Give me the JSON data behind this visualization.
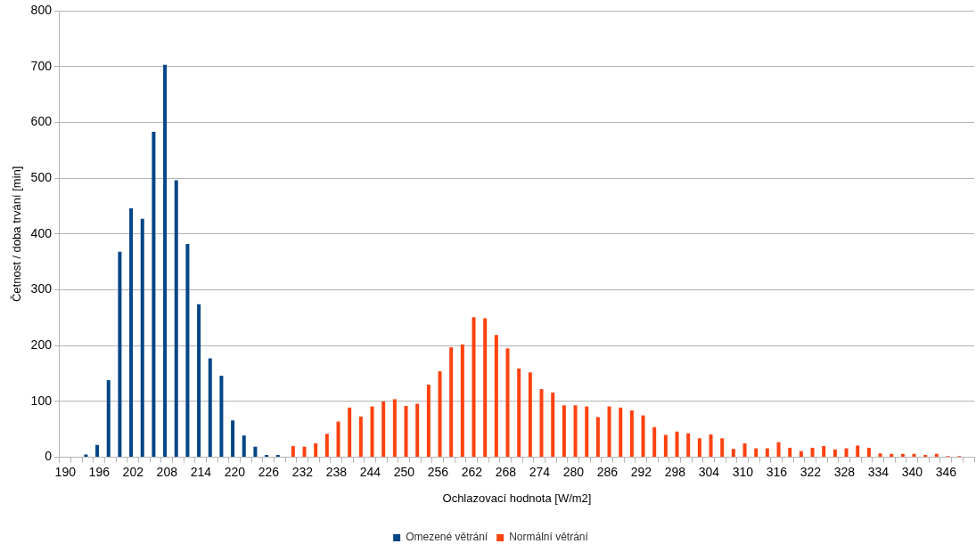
{
  "chart_data": {
    "type": "bar",
    "xlabel": "Ochlazovací hodnota [W/m2]",
    "ylabel": "Četnost / doba trvání [min]",
    "categories": [
      "190",
      null,
      null,
      "196",
      null,
      null,
      "202",
      null,
      null,
      "208",
      null,
      null,
      "214",
      null,
      null,
      "220",
      null,
      null,
      "226",
      null,
      null,
      "232",
      null,
      null,
      "238",
      null,
      null,
      "244",
      null,
      null,
      "250",
      null,
      null,
      "256",
      null,
      null,
      "262",
      null,
      null,
      "268",
      null,
      null,
      "274",
      null,
      null,
      "280",
      null,
      null,
      "286",
      null,
      null,
      "292",
      null,
      null,
      "298",
      null,
      null,
      "304",
      null,
      null,
      "310",
      null,
      null,
      "316",
      null,
      null,
      "322",
      null,
      null,
      "328",
      null,
      null,
      "334",
      null,
      null,
      "340",
      null,
      null,
      "346",
      null,
      null
    ],
    "series": [
      {
        "name": "Omezené větrání",
        "color": "#004586",
        "values": [
          null,
          null,
          5,
          22,
          138,
          368,
          446,
          427,
          583,
          703,
          496,
          382,
          274,
          177,
          146,
          66,
          39,
          19,
          4,
          4,
          null,
          null,
          null,
          null,
          null,
          null,
          null,
          null,
          null,
          null,
          null,
          null,
          null,
          null,
          null,
          null,
          null,
          null,
          null,
          null,
          null,
          null,
          null,
          null,
          null,
          null,
          null,
          null,
          null,
          null,
          null,
          null,
          null,
          null,
          null,
          null,
          null,
          null,
          null,
          null,
          null,
          null,
          null,
          null,
          null,
          null,
          null,
          null,
          null,
          null,
          null,
          null,
          null,
          null,
          null,
          null,
          null,
          null,
          null,
          null,
          null
        ]
      },
      {
        "name": "Normální větrání",
        "color": "#ff420e",
        "values": [
          null,
          null,
          null,
          null,
          null,
          null,
          null,
          null,
          null,
          null,
          null,
          null,
          null,
          null,
          null,
          null,
          null,
          null,
          null,
          null,
          20,
          19,
          25,
          42,
          64,
          89,
          73,
          91,
          100,
          104,
          92,
          96,
          130,
          154,
          197,
          202,
          251,
          249,
          219,
          195,
          159,
          152,
          122,
          116,
          93,
          93,
          91,
          72,
          91,
          89,
          84,
          75,
          54,
          40,
          46,
          43,
          34,
          41,
          34,
          15,
          25,
          16,
          16,
          27,
          17,
          11,
          17,
          20,
          14,
          16,
          21,
          17,
          7,
          6,
          6,
          6,
          4,
          6,
          2,
          2,
          null
        ]
      }
    ],
    "ylim": [
      0,
      800
    ],
    "yticks": [
      0,
      100,
      200,
      300,
      400,
      500,
      600,
      700,
      800
    ],
    "grid": "y",
    "legend": "bottom"
  }
}
